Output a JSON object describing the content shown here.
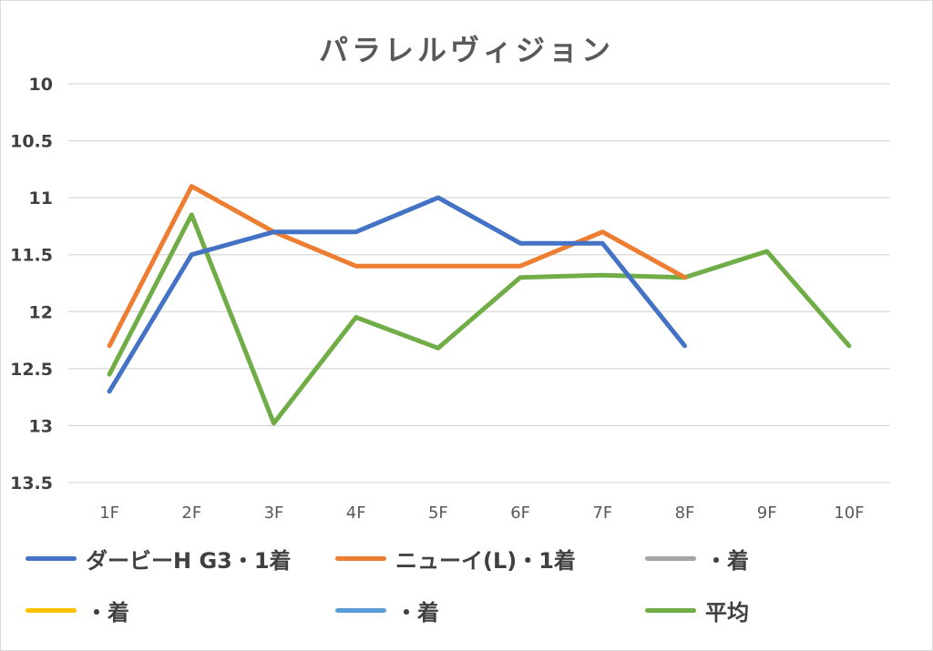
{
  "chart_data": {
    "type": "line",
    "title": "パラレルヴィジョン",
    "xlabel": "",
    "ylabel": "",
    "categories": [
      "1F",
      "2F",
      "3F",
      "4F",
      "5F",
      "6F",
      "7F",
      "8F",
      "9F",
      "10F"
    ],
    "yticks": [
      "10",
      "10.5",
      "11",
      "11.5",
      "12",
      "12.5",
      "13",
      "13.5"
    ],
    "ylim": [
      10,
      13.5
    ],
    "y_inverted": true,
    "grid": true,
    "legend_position": "bottom",
    "series": [
      {
        "name": "ダービーH G3・1着",
        "color": "#4472c4",
        "values": [
          12.7,
          11.5,
          11.3,
          11.3,
          11.0,
          11.4,
          11.4,
          12.3,
          null,
          null
        ]
      },
      {
        "name": "ニューイ(L)・1着",
        "color": "#ed7d31",
        "values": [
          12.3,
          10.9,
          11.3,
          11.6,
          11.6,
          11.6,
          11.3,
          11.7,
          null,
          null
        ]
      },
      {
        "name": "・着",
        "color": "#a5a5a5",
        "values": [
          null,
          null,
          null,
          null,
          null,
          null,
          null,
          null,
          null,
          null
        ]
      },
      {
        "name": "・着",
        "color": "#ffc000",
        "values": [
          null,
          null,
          null,
          null,
          null,
          null,
          null,
          null,
          null,
          null
        ]
      },
      {
        "name": "・着",
        "color": "#5b9bd5",
        "values": [
          null,
          null,
          null,
          null,
          null,
          null,
          null,
          null,
          null,
          null
        ]
      },
      {
        "name": "平均",
        "color": "#70ad47",
        "values": [
          12.55,
          11.15,
          12.98,
          12.05,
          12.32,
          11.7,
          11.68,
          11.7,
          11.47,
          12.3
        ]
      }
    ]
  }
}
